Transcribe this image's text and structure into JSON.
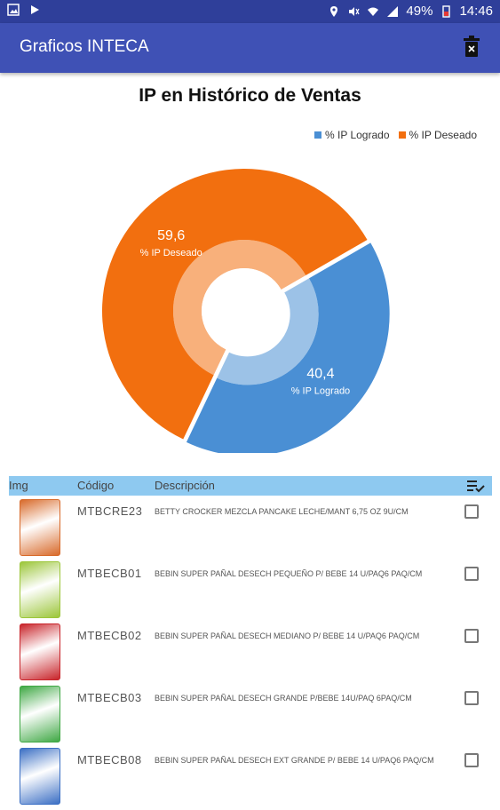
{
  "status_bar": {
    "battery": "49%",
    "time": "14:46"
  },
  "app_bar": {
    "title": "Graficos INTECA"
  },
  "chart_data": {
    "type": "pie",
    "title": "IP en Histórico de Ventas",
    "legend": [
      "% IP Logrado",
      "% IP Deseado"
    ],
    "legend_position": "top-right",
    "slices": [
      {
        "name": "% IP Logrado",
        "value": 40.4,
        "value_label": "40,4",
        "color": "#4a8fd4"
      },
      {
        "name": "% IP Deseado",
        "value": 59.6,
        "value_label": "59,6",
        "color": "#f26f0f"
      }
    ]
  },
  "table": {
    "headers": {
      "img": "Img",
      "code": "Código",
      "description": "Descripción"
    },
    "rows": [
      {
        "code": "MTBCRE23",
        "description": "BETTY CROCKER MEZCLA PANCAKE LECHE/MANT 6,75 OZ 9U/CM",
        "thumb_color": "#d86a2a"
      },
      {
        "code": "MTBECB01",
        "description": "BEBIN SUPER PAÑAL DESECH PEQUEÑO P/ BEBE 14 U/PAQ6 PAQ/CM",
        "thumb_color": "#9cc63a"
      },
      {
        "code": "MTBECB02",
        "description": "BEBIN SUPER PAÑAL DESECH MEDIANO P/ BEBE 14 U/PAQ6 PAQ/CM",
        "thumb_color": "#c8242a"
      },
      {
        "code": "MTBECB03",
        "description": "BEBIN SUPER PAÑAL DESECH GRANDE P/BEBE 14U/PAQ 6PAQ/CM",
        "thumb_color": "#3fa844"
      },
      {
        "code": "MTBECB08",
        "description": "BEBIN SUPER PAÑAL DESECH EXT GRANDE P/ BEBE 14 U/PAQ6 PAQ/CM",
        "thumb_color": "#3b6fc4"
      }
    ]
  }
}
